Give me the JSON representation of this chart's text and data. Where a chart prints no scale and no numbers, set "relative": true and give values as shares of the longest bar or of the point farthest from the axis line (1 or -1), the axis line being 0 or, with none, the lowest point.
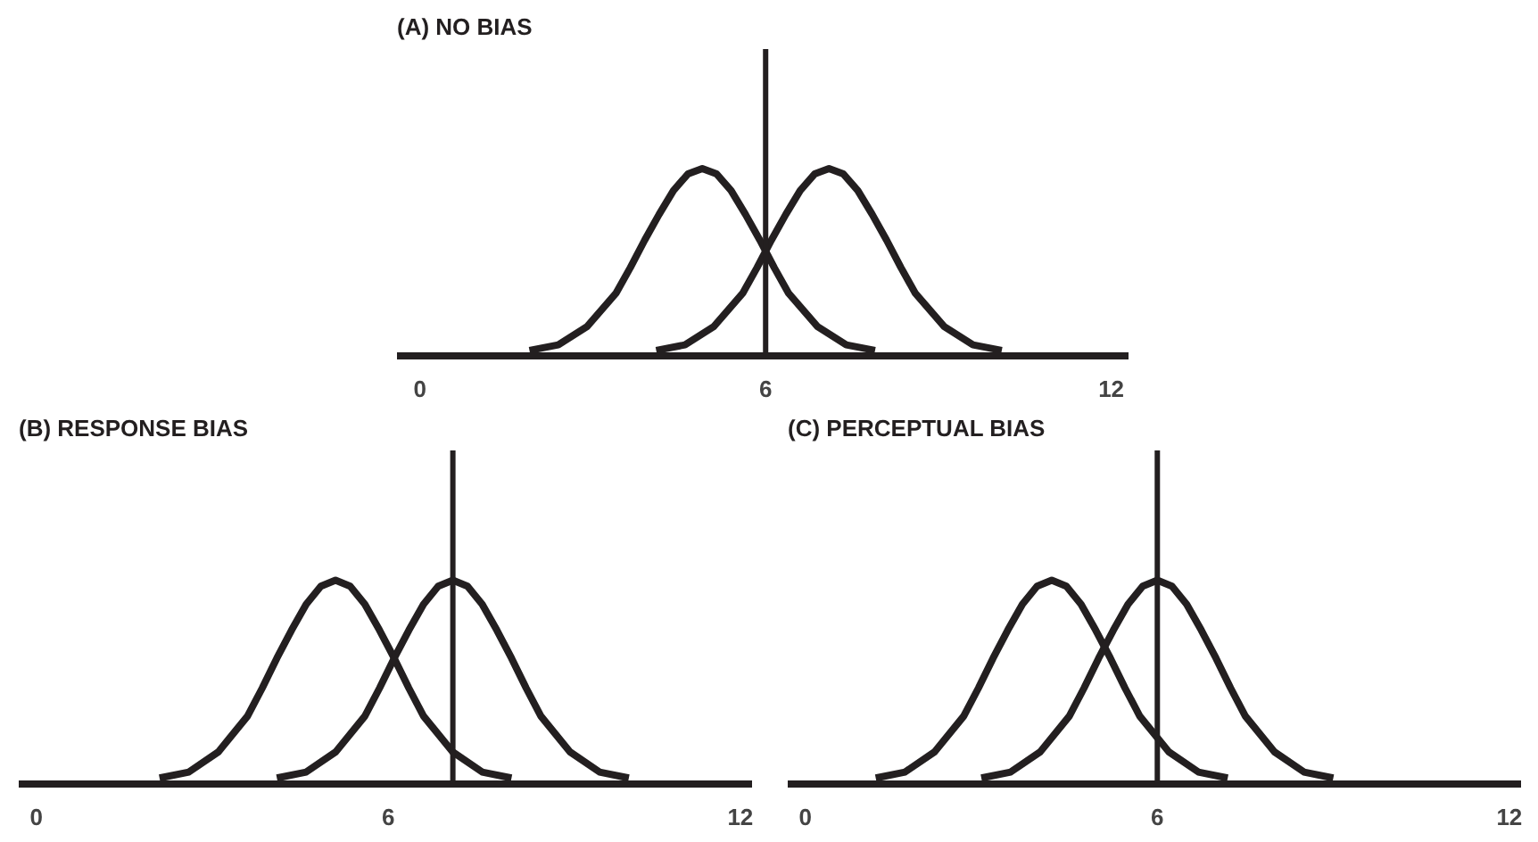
{
  "chart_data": [
    {
      "type": "line",
      "title": "(A) NO BIAS",
      "relative": true,
      "xlim": [
        -0.4,
        12.3
      ],
      "xticks": [
        0,
        6,
        12
      ],
      "grid": false,
      "marker": "none",
      "line_style": "solid",
      "ref_lines": [
        {
          "axis": "x",
          "value": 6,
          "color": "#231f20"
        }
      ],
      "series": [
        {
          "color": "#231f20",
          "x": [
            1.9,
            2.4,
            2.9,
            3.4,
            3.65,
            3.9,
            4.15,
            4.4,
            4.65,
            4.9,
            5.15,
            5.4,
            5.65,
            5.9,
            6.15,
            6.4,
            6.9,
            7.4,
            7.9
          ],
          "values": [
            0.01,
            0.04,
            0.14,
            0.32,
            0.46,
            0.61,
            0.75,
            0.88,
            0.97,
            1,
            0.97,
            0.88,
            0.75,
            0.61,
            0.46,
            0.32,
            0.14,
            0.04,
            0.01
          ]
        },
        {
          "color": "#231f20",
          "x": [
            4.1,
            4.6,
            5.1,
            5.6,
            5.85,
            6.1,
            6.35,
            6.6,
            6.85,
            7.1,
            7.35,
            7.6,
            7.85,
            8.1,
            8.35,
            8.6,
            9.1,
            9.6,
            10.1
          ],
          "values": [
            0.01,
            0.04,
            0.14,
            0.32,
            0.46,
            0.61,
            0.75,
            0.88,
            0.97,
            1,
            0.97,
            0.88,
            0.75,
            0.61,
            0.46,
            0.32,
            0.14,
            0.04,
            0.01
          ]
        }
      ]
    },
    {
      "type": "line",
      "title": "(B) RESPONSE BIAS",
      "relative": true,
      "xlim": [
        -0.3,
        12.2
      ],
      "xticks": [
        0,
        6,
        12
      ],
      "grid": false,
      "marker": "none",
      "line_style": "solid",
      "ref_lines": [
        {
          "axis": "x",
          "value": 7.1,
          "color": "#231f20"
        }
      ],
      "series": [
        {
          "color": "#231f20",
          "x": [
            2.1,
            2.6,
            3.1,
            3.6,
            3.85,
            4.1,
            4.35,
            4.6,
            4.85,
            5.1,
            5.35,
            5.6,
            5.85,
            6.1,
            6.35,
            6.6,
            7.1,
            7.6,
            8.1
          ],
          "values": [
            0.01,
            0.04,
            0.14,
            0.32,
            0.46,
            0.61,
            0.75,
            0.88,
            0.97,
            1,
            0.97,
            0.88,
            0.75,
            0.61,
            0.46,
            0.32,
            0.14,
            0.04,
            0.01
          ]
        },
        {
          "color": "#231f20",
          "x": [
            4.1,
            4.6,
            5.1,
            5.6,
            5.85,
            6.1,
            6.35,
            6.6,
            6.85,
            7.1,
            7.35,
            7.6,
            7.85,
            8.1,
            8.35,
            8.6,
            9.1,
            9.6,
            10.1
          ],
          "values": [
            0.01,
            0.04,
            0.14,
            0.32,
            0.46,
            0.61,
            0.75,
            0.88,
            0.97,
            1,
            0.97,
            0.88,
            0.75,
            0.61,
            0.46,
            0.32,
            0.14,
            0.04,
            0.01
          ]
        }
      ]
    },
    {
      "type": "line",
      "title": "(C) PERCEPTUAL BIAS",
      "relative": true,
      "xlim": [
        -0.3,
        12.2
      ],
      "xticks": [
        0,
        6,
        12
      ],
      "grid": false,
      "marker": "none",
      "line_style": "solid",
      "ref_lines": [
        {
          "axis": "x",
          "value": 6,
          "color": "#231f20"
        }
      ],
      "series": [
        {
          "color": "#231f20",
          "x": [
            1.2,
            1.7,
            2.2,
            2.7,
            2.95,
            3.2,
            3.45,
            3.7,
            3.95,
            4.2,
            4.45,
            4.7,
            4.95,
            5.2,
            5.45,
            5.7,
            6.2,
            6.7,
            7.2
          ],
          "values": [
            0.01,
            0.04,
            0.14,
            0.32,
            0.46,
            0.61,
            0.75,
            0.88,
            0.97,
            1,
            0.97,
            0.88,
            0.75,
            0.61,
            0.46,
            0.32,
            0.14,
            0.04,
            0.01
          ]
        },
        {
          "color": "#231f20",
          "x": [
            3,
            3.5,
            4,
            4.5,
            4.75,
            5,
            5.25,
            5.5,
            5.75,
            6,
            6.25,
            6.5,
            6.75,
            7,
            7.25,
            7.5,
            8,
            8.5,
            9
          ],
          "values": [
            0.01,
            0.04,
            0.14,
            0.32,
            0.46,
            0.61,
            0.75,
            0.88,
            0.97,
            1,
            0.97,
            0.88,
            0.75,
            0.61,
            0.46,
            0.32,
            0.14,
            0.04,
            0.01
          ]
        }
      ]
    }
  ]
}
